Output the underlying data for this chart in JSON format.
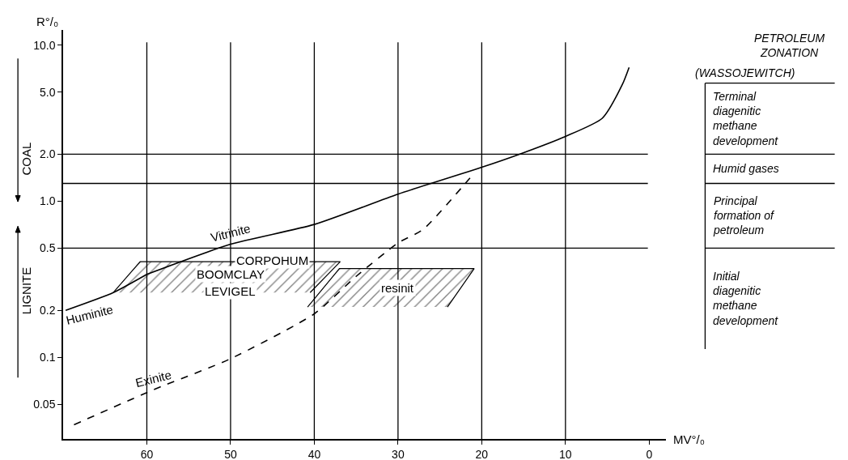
{
  "chart_data": {
    "type": "line",
    "xlabel": "MV°/₀",
    "ylabel": "R°/₀",
    "log": "y",
    "grid": false,
    "legend": false,
    "marker": "none",
    "xlim": [
      70,
      -2
    ],
    "xticks": [
      60,
      50,
      40,
      30,
      20,
      10,
      0
    ],
    "ylim": [
      0.03,
      12.5
    ],
    "yticks": [
      {
        "value": 0.05,
        "label": "0.05"
      },
      {
        "value": 0.1,
        "label": "0.1"
      },
      {
        "value": 0.2,
        "label": "0.2"
      },
      {
        "value": 0.5,
        "label": "0.5"
      },
      {
        "value": 1,
        "label": "1.0"
      },
      {
        "value": 2,
        "label": "2.0"
      },
      {
        "value": 5,
        "label": "5.0"
      },
      {
        "value": 10,
        "label": "10.0"
      }
    ],
    "series": [
      {
        "name": "Huminite",
        "color": "#000000",
        "line_style": "solid",
        "x": [
          69.7,
          64,
          60
        ],
        "values": [
          0.2,
          0.26,
          0.34
        ]
      },
      {
        "name": "Vitrinite",
        "color": "#000000",
        "line_style": "solid",
        "x": [
          60,
          50,
          40,
          30,
          20,
          15.5,
          10,
          5.6,
          3.2,
          2.4
        ],
        "values": [
          0.34,
          0.53,
          0.71,
          1.11,
          1.65,
          2.0,
          2.6,
          3.4,
          5.6,
          7.2
        ]
      },
      {
        "name": "Exinite",
        "color": "#000000",
        "line_style": "dashed",
        "x": [
          68.7,
          59.2,
          50,
          40,
          35,
          30,
          27,
          21.4
        ],
        "values": [
          0.037,
          0.062,
          0.098,
          0.19,
          0.33,
          0.54,
          0.66,
          1.41
        ]
      },
      {
        "type": "area",
        "color": "#000000",
        "x": [
          64,
          60.8,
          36.9,
          40.5
        ],
        "values": [
          0.26,
          0.41,
          0.41,
          0.26
        ]
      },
      {
        "type": "area",
        "color": "#000000",
        "x": [
          40.8,
          37,
          20.9,
          24.1
        ],
        "values": [
          0.21,
          0.37,
          0.37,
          0.21
        ]
      }
    ],
    "ref_lines": [
      {
        "axis": "y",
        "value": 2.0
      },
      {
        "axis": "y",
        "value": 1.3
      },
      {
        "axis": "y",
        "value": 0.5
      },
      {
        "axis": "x",
        "value": 60
      },
      {
        "axis": "x",
        "value": 50
      },
      {
        "axis": "x",
        "value": 40
      },
      {
        "axis": "x",
        "value": 30
      },
      {
        "axis": "x",
        "value": 20
      },
      {
        "axis": "x",
        "value": 10
      }
    ],
    "annotations": [
      {
        "text": "CORPOHUM",
        "x": 45,
        "y": 0.42
      },
      {
        "text": "BOOMCLAY",
        "x": 50,
        "y": 0.34
      },
      {
        "text": "LEVIGEL",
        "x": 50,
        "y": 0.265
      },
      {
        "text": "resinit",
        "x": 30,
        "y": 0.28
      },
      "COAL",
      "LIGNITE",
      "PETROLEUM ZONATION",
      "(WASSOJEWITCH)",
      "Terminal diagenitic methane development",
      "Humid gases",
      "Principal formation of petroleum",
      "Initial diagenitic methane development"
    ]
  }
}
